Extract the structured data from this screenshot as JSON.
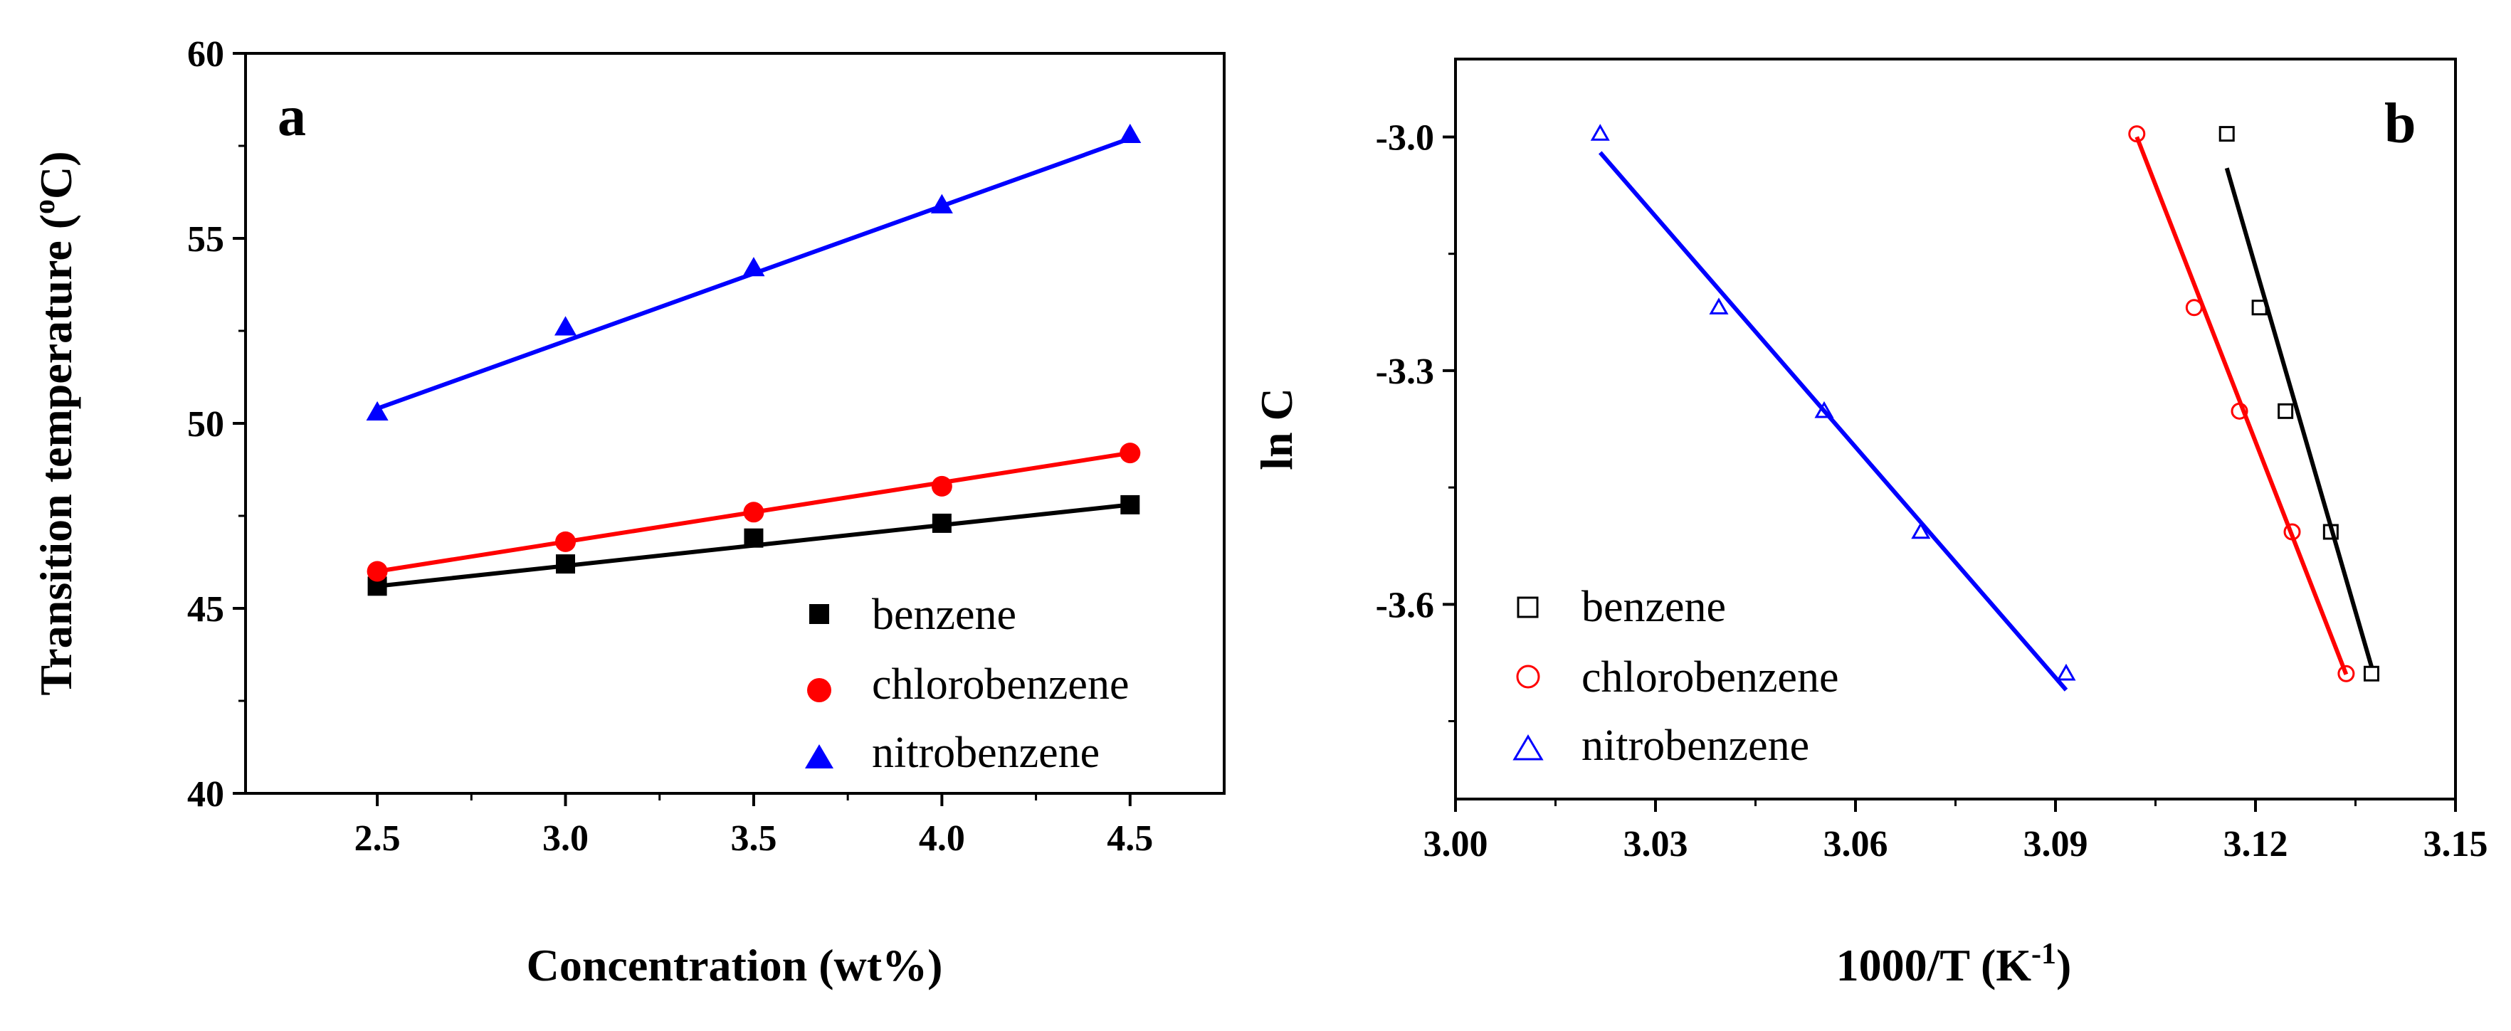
{
  "chart_data": [
    {
      "type": "scatter",
      "panel_label": "a",
      "xlabel": "Concentration (wt%)",
      "ylabel_main": "Transition temperature (",
      "ylabel_sup": "o",
      "ylabel_end": "C)",
      "xlim": [
        2.15,
        4.75
      ],
      "ylim": [
        40,
        60
      ],
      "xticks": [
        2.5,
        3.0,
        3.5,
        4.0,
        4.5
      ],
      "xtick_labels": [
        "2.5",
        "3.0",
        "3.5",
        "4.0",
        "4.5"
      ],
      "yticks": [
        40,
        45,
        50,
        55,
        60
      ],
      "ytick_labels": [
        "40",
        "45",
        "50",
        "55",
        "60"
      ],
      "legend_position": "lower-right",
      "series": [
        {
          "name": "benzene",
          "color": "#000000",
          "marker": "square",
          "filled": true,
          "x": [
            2.5,
            3.0,
            3.5,
            4.0,
            4.5
          ],
          "y": [
            45.6,
            46.2,
            46.9,
            47.3,
            47.8
          ],
          "fit": [
            [
              2.5,
              45.6
            ],
            [
              4.5,
              47.8
            ]
          ]
        },
        {
          "name": "chlorobenzene",
          "color": "#ff0000",
          "marker": "circle",
          "filled": true,
          "x": [
            2.5,
            3.0,
            3.5,
            4.0,
            4.5
          ],
          "y": [
            46.0,
            46.8,
            47.6,
            48.3,
            49.2
          ],
          "fit": [
            [
              2.5,
              46.0
            ],
            [
              4.5,
              49.2
            ]
          ]
        },
        {
          "name": "nitrobenzene",
          "color": "#0000ff",
          "marker": "triangle",
          "filled": true,
          "x": [
            2.5,
            3.0,
            3.5,
            4.0,
            4.5
          ],
          "y": [
            50.3,
            52.6,
            54.2,
            55.9,
            57.8
          ],
          "fit": [
            [
              2.5,
              50.4
            ],
            [
              4.5,
              57.7
            ]
          ]
        }
      ]
    },
    {
      "type": "scatter",
      "panel_label": "b",
      "xlabel_main": "1000/T (K",
      "xlabel_sup": "-1",
      "xlabel_end": ")",
      "ylabel": "ln C",
      "xlim": [
        3.0,
        3.15
      ],
      "ylim": [
        -3.85,
        -2.9
      ],
      "xticks": [
        3.0,
        3.03,
        3.06,
        3.09,
        3.12,
        3.15
      ],
      "xtick_labels": [
        "3.00",
        "3.03",
        "3.06",
        "3.09",
        "3.12",
        "3.15"
      ],
      "yticks": [
        -3.0,
        -3.3,
        -3.6
      ],
      "ytick_labels": [
        "-3.0",
        "-3.3",
        "-3.6"
      ],
      "legend_position": "lower-left",
      "series": [
        {
          "name": "benzene",
          "color": "#000000",
          "marker": "square",
          "filled": false,
          "x": [
            3.1157,
            3.1206,
            3.1245,
            3.1313,
            3.1374
          ],
          "y": [
            -2.996,
            -3.219,
            -3.352,
            -3.507,
            -3.689
          ],
          "fit": [
            [
              3.1157,
              -3.04
            ],
            [
              3.1374,
              -3.68
            ]
          ]
        },
        {
          "name": "chlorobenzene",
          "color": "#ff0000",
          "marker": "circle",
          "filled": false,
          "x": [
            3.1022,
            3.1108,
            3.1176,
            3.1255,
            3.1336
          ],
          "y": [
            -2.996,
            -3.219,
            -3.352,
            -3.507,
            -3.689
          ],
          "fit": [
            [
              3.1022,
              -3.0
            ],
            [
              3.1336,
              -3.69
            ]
          ]
        },
        {
          "name": "nitrobenzene",
          "color": "#0000ff",
          "marker": "triangle",
          "filled": false,
          "x": [
            3.0217,
            3.0395,
            3.0553,
            3.0698,
            3.0916
          ],
          "y": [
            -2.996,
            -3.219,
            -3.352,
            -3.507,
            -3.689
          ],
          "fit": [
            [
              3.0217,
              -3.02
            ],
            [
              3.0916,
              -3.71
            ]
          ]
        }
      ]
    }
  ]
}
